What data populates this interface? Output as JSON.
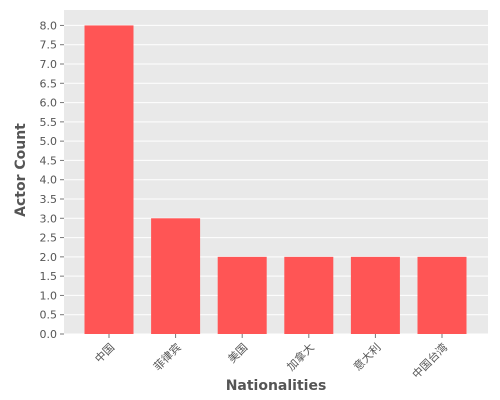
{
  "chart_data": {
    "type": "bar",
    "title": "",
    "xlabel": "Nationalities",
    "ylabel": "Actor Count",
    "categories": [
      "中国",
      "菲律宾",
      "美国",
      "加拿大",
      "意大利",
      "中国台湾"
    ],
    "values": [
      8,
      3,
      2,
      2,
      2,
      2
    ],
    "ylim": [
      0,
      8.4
    ],
    "y_ticks": [
      "0.0",
      "0.5",
      "1.0",
      "1.5",
      "2.0",
      "2.5",
      "3.0",
      "3.5",
      "4.0",
      "4.5",
      "5.0",
      "5.5",
      "6.0",
      "6.5",
      "7.0",
      "7.5",
      "8.0"
    ],
    "grid": true,
    "legend": "none",
    "bar_color": "#ff5555",
    "plot_background": "#e9e9e9",
    "grid_color": "#ffffff"
  }
}
